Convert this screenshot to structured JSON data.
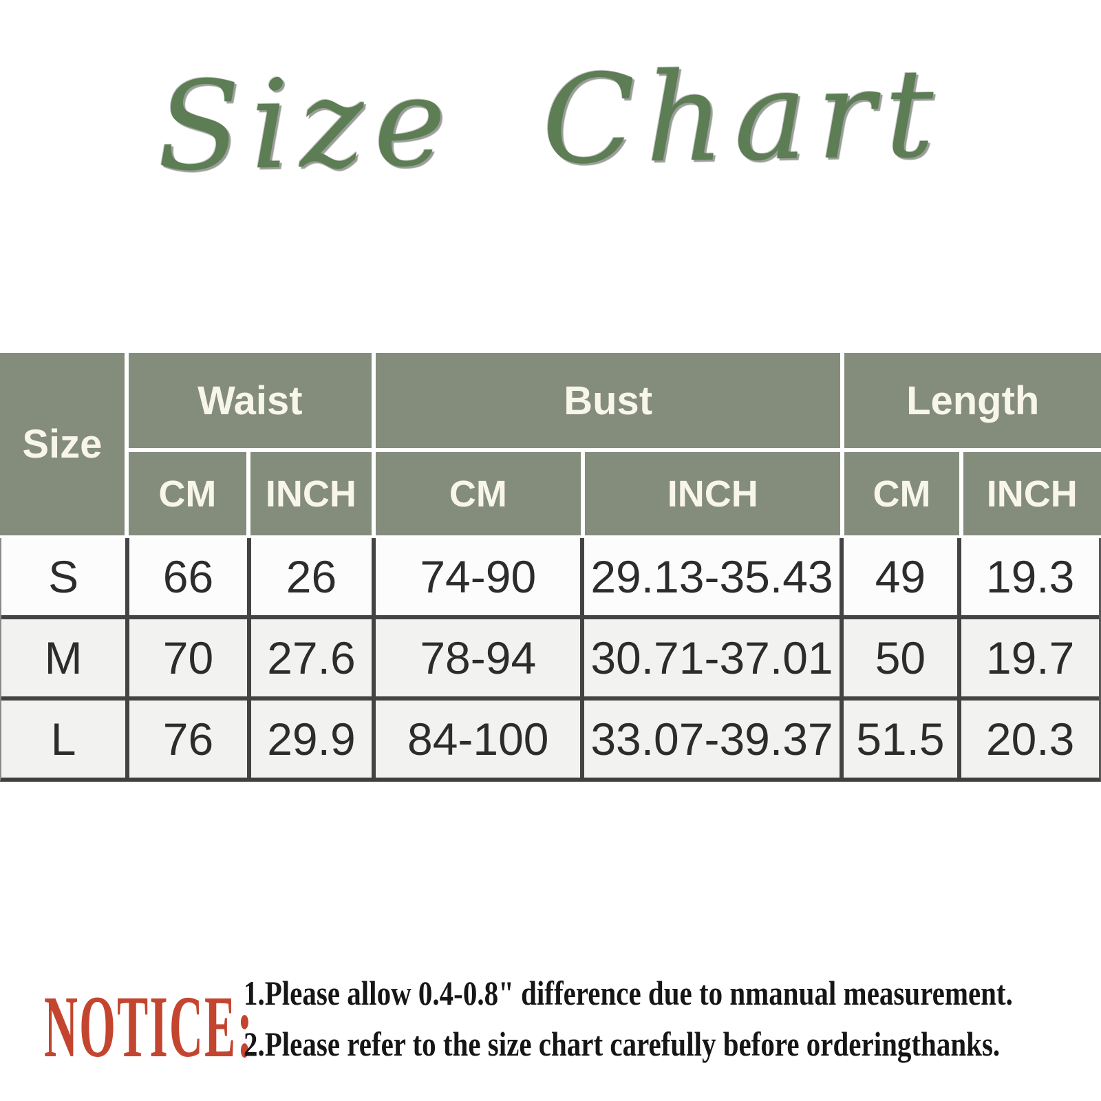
{
  "chart_data": {
    "type": "table",
    "title": "Size Chart",
    "corner_label": "Size",
    "column_groups": [
      {
        "label": "Waist",
        "sub": [
          "CM",
          "INCH"
        ]
      },
      {
        "label": "Bust",
        "sub": [
          "CM",
          "INCH"
        ]
      },
      {
        "label": "Length",
        "sub": [
          "CM",
          "INCH"
        ]
      }
    ],
    "rows": [
      {
        "size": "S",
        "values": [
          "66",
          "26",
          "74-90",
          "29.13-35.43",
          "49",
          "19.3"
        ]
      },
      {
        "size": "M",
        "values": [
          "70",
          "27.6",
          "78-94",
          "30.71-37.01",
          "50",
          "19.7"
        ]
      },
      {
        "size": "L",
        "values": [
          "76",
          "29.9",
          "84-100",
          "33.07-39.37",
          "51.5",
          "20.3"
        ]
      }
    ]
  },
  "notice": {
    "label": "NOTICE:",
    "lines": [
      "1.Please allow 0.4-0.8\" difference due to nmanual measurement.",
      "2.Please refer to the size chart carefully before orderingthanks."
    ]
  },
  "colors": {
    "title_green": "#5d7d55",
    "header_bg": "#848d7c",
    "header_text": "#f8f5ea",
    "row_bg": "#fcfcfc",
    "row_alt_bg": "#f2f2f0",
    "cell_text": "#2c2c2c",
    "border_dark": "#434343",
    "notice_red": "#c4452f"
  }
}
